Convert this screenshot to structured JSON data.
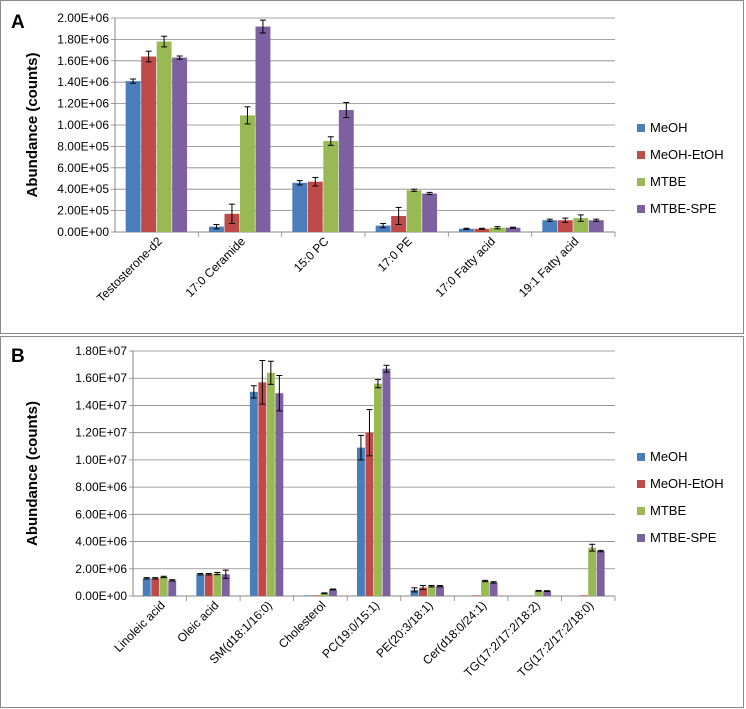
{
  "chart_data": [
    {
      "type": "bar",
      "panel_label": "A",
      "ylabel": "Abundance (counts)",
      "xlabel": "",
      "ylim": [
        0,
        2000000
      ],
      "yticks": [
        0,
        200000,
        400000,
        600000,
        800000,
        1000000,
        1200000,
        1400000,
        1600000,
        1800000,
        2000000
      ],
      "ytick_labels": [
        "0.00E+00",
        "2.00E+05",
        "4.00E+05",
        "6.00E+05",
        "8.00E+05",
        "1.00E+06",
        "1.20E+06",
        "1.40E+06",
        "1.60E+06",
        "1.80E+06",
        "2.00E+06"
      ],
      "categories": [
        "Testosterone-d2",
        "17:0 Ceramide",
        "15:0 PC",
        "17:0 PE",
        "17:0 Fatty acid",
        "19:1 Fatty acid"
      ],
      "series": [
        {
          "name": "MeOH",
          "color": "#4a7ebb",
          "values": [
            1410000,
            50000,
            460000,
            60000,
            30000,
            110000
          ],
          "errors": [
            20000,
            20000,
            20000,
            20000,
            5000,
            10000
          ]
        },
        {
          "name": "MeOH-EtOH",
          "color": "#be4b48",
          "values": [
            1640000,
            170000,
            470000,
            150000,
            30000,
            110000
          ],
          "errors": [
            50000,
            90000,
            40000,
            80000,
            5000,
            20000
          ]
        },
        {
          "name": "MTBE",
          "color": "#98b954",
          "values": [
            1780000,
            1090000,
            850000,
            390000,
            40000,
            130000
          ],
          "errors": [
            50000,
            80000,
            40000,
            10000,
            10000,
            30000
          ]
        },
        {
          "name": "MTBE-SPE",
          "color": "#7d60a0",
          "values": [
            1630000,
            1920000,
            1140000,
            360000,
            40000,
            110000
          ],
          "errors": [
            15000,
            60000,
            70000,
            10000,
            5000,
            10000
          ]
        }
      ],
      "legend": "right"
    },
    {
      "type": "bar",
      "panel_label": "B",
      "ylabel": "Abundance (counts)",
      "xlabel": "",
      "ylim": [
        0,
        18000000
      ],
      "yticks": [
        0,
        2000000,
        4000000,
        6000000,
        8000000,
        10000000,
        12000000,
        14000000,
        16000000,
        18000000
      ],
      "ytick_labels": [
        "0.00E+00",
        "2.00E+06",
        "4.00E+06",
        "6.00E+06",
        "8.00E+06",
        "1.00E+07",
        "1.20E+07",
        "1.40E+07",
        "1.60E+07",
        "1.80E+07"
      ],
      "categories": [
        "Linoleic acid",
        "Oleic acid",
        "SM(d18:1/16:0)",
        "Cholesterol",
        "PC(19:0/15:1)",
        "PE(20:3/18:1)",
        "Cer(d18:0/24:1)",
        "TG(17:2/17:2/18:2)",
        "TG(17:2/17:2/18:0)"
      ],
      "series": [
        {
          "name": "MeOH",
          "color": "#4a7ebb",
          "values": [
            1300000,
            1600000,
            15000000,
            50000,
            10900000,
            450000,
            0,
            0,
            0
          ],
          "errors": [
            50000,
            50000,
            450000,
            0,
            900000,
            150000,
            0,
            0,
            0
          ]
        },
        {
          "name": "MeOH-EtOH",
          "color": "#be4b48",
          "values": [
            1300000,
            1600000,
            15700000,
            50000,
            12000000,
            620000,
            50000,
            0,
            50000
          ],
          "errors": [
            50000,
            50000,
            1600000,
            0,
            1700000,
            150000,
            0,
            0,
            0
          ]
        },
        {
          "name": "MTBE",
          "color": "#98b954",
          "values": [
            1400000,
            1650000,
            16400000,
            200000,
            15600000,
            720000,
            1100000,
            380000,
            3550000
          ],
          "errors": [
            50000,
            80000,
            850000,
            30000,
            300000,
            50000,
            50000,
            30000,
            250000
          ]
        },
        {
          "name": "MTBE-SPE",
          "color": "#7d60a0",
          "values": [
            1150000,
            1600000,
            14900000,
            480000,
            16700000,
            720000,
            1000000,
            360000,
            3300000
          ],
          "errors": [
            50000,
            300000,
            1300000,
            30000,
            250000,
            50000,
            50000,
            30000,
            50000
          ]
        }
      ],
      "legend": "right"
    }
  ]
}
